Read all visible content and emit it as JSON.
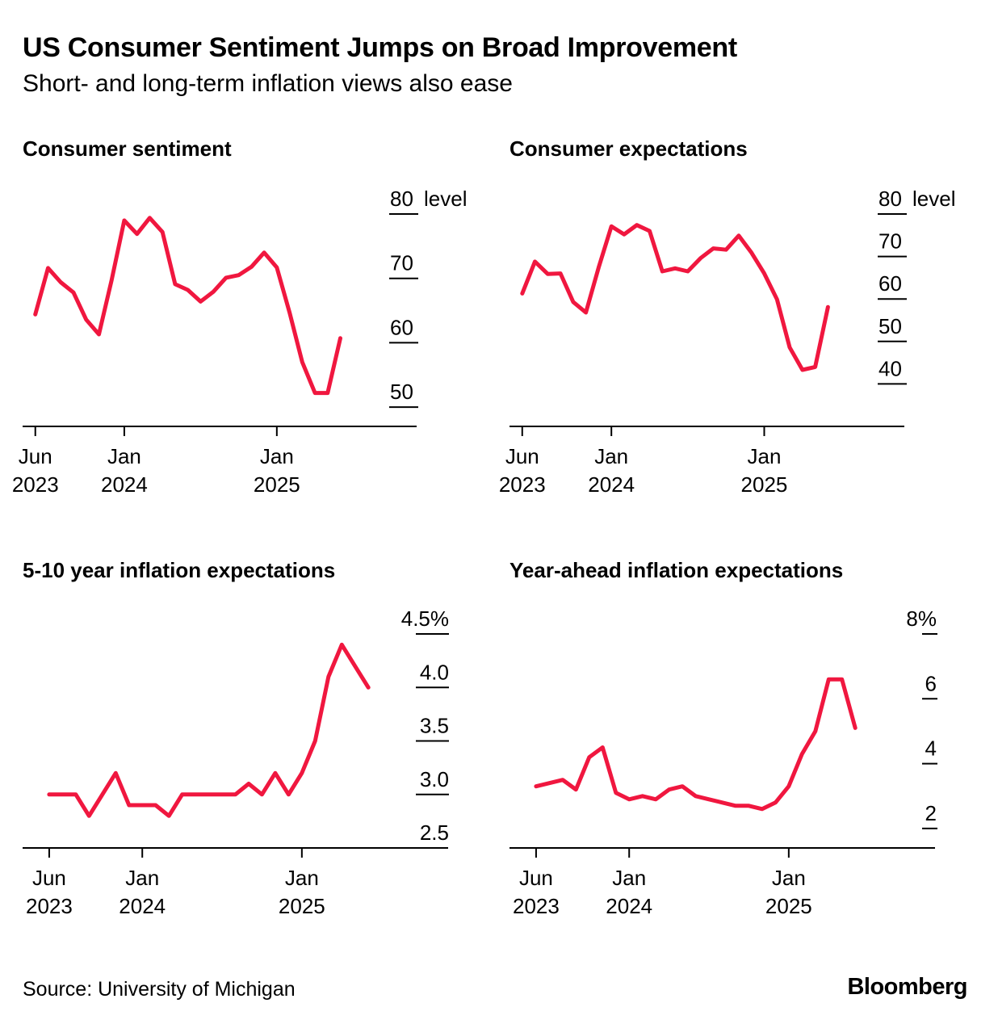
{
  "title": "US Consumer Sentiment Jumps on Broad Improvement",
  "subtitle": "Short- and long-term inflation views also ease",
  "source": "Source: University of Michigan",
  "brand": "Bloomberg",
  "colors": {
    "line": "#f0173f",
    "text": "#000000",
    "axis": "#000000"
  },
  "chart_data": [
    {
      "type": "line",
      "title": "Consumer sentiment",
      "unit_label": "level",
      "x_ticks": [
        {
          "date": "2023-06",
          "label": [
            "Jun",
            "2023"
          ]
        },
        {
          "date": "2024-01",
          "label": [
            "Jan",
            "2024"
          ]
        },
        {
          "date": "2025-01",
          "label": [
            "Jan",
            "2025"
          ]
        }
      ],
      "x_range": [
        "2023-05",
        "2025-12"
      ],
      "y_ticks": [
        50,
        60,
        70,
        80
      ],
      "ylim": [
        47,
        80
      ],
      "series": [
        {
          "x": [
            "2023-06",
            "2023-07",
            "2023-08",
            "2023-09",
            "2023-10",
            "2023-11",
            "2023-12",
            "2024-01",
            "2024-02",
            "2024-03",
            "2024-04",
            "2024-05",
            "2024-06",
            "2024-07",
            "2024-08",
            "2024-09",
            "2024-10",
            "2024-11",
            "2024-12",
            "2025-01",
            "2025-02",
            "2025-03",
            "2025-04",
            "2025-05",
            "2025-06"
          ],
          "y": [
            64.4,
            71.6,
            69.4,
            67.8,
            63.6,
            61.3,
            69.7,
            79.0,
            76.9,
            79.4,
            77.2,
            69.1,
            68.2,
            66.4,
            67.9,
            70.1,
            70.5,
            71.8,
            74.0,
            71.7,
            64.7,
            57.0,
            52.2,
            52.2,
            60.7
          ]
        }
      ]
    },
    {
      "type": "line",
      "title": "Consumer expectations",
      "unit_label": "level",
      "x_ticks": [
        {
          "date": "2023-06",
          "label": [
            "Jun",
            "2023"
          ]
        },
        {
          "date": "2024-01",
          "label": [
            "Jan",
            "2024"
          ]
        },
        {
          "date": "2025-01",
          "label": [
            "Jan",
            "2025"
          ]
        }
      ],
      "x_range": [
        "2023-05",
        "2025-12"
      ],
      "y_ticks": [
        40,
        50,
        60,
        70,
        80
      ],
      "ylim": [
        30,
        80
      ],
      "series": [
        {
          "x": [
            "2023-06",
            "2023-07",
            "2023-08",
            "2023-09",
            "2023-10",
            "2023-11",
            "2023-12",
            "2024-01",
            "2024-02",
            "2024-03",
            "2024-04",
            "2024-05",
            "2024-06",
            "2024-07",
            "2024-08",
            "2024-09",
            "2024-10",
            "2024-11",
            "2024-12",
            "2025-01",
            "2025-02",
            "2025-03",
            "2025-04",
            "2025-05",
            "2025-06"
          ],
          "y": [
            61.3,
            68.8,
            65.9,
            66.0,
            59.3,
            56.8,
            67.4,
            77.1,
            75.2,
            77.4,
            76.0,
            66.5,
            67.2,
            66.5,
            69.6,
            71.9,
            71.6,
            74.9,
            70.9,
            66.0,
            59.9,
            48.6,
            43.3,
            44.0,
            58.1
          ]
        }
      ]
    },
    {
      "type": "line",
      "title": "5-10 year inflation expectations",
      "unit_label": "%",
      "x_ticks": [
        {
          "date": "2023-06",
          "label": [
            "Jun",
            "2023"
          ]
        },
        {
          "date": "2024-01",
          "label": [
            "Jan",
            "2024"
          ]
        },
        {
          "date": "2025-01",
          "label": [
            "Jan",
            "2025"
          ]
        }
      ],
      "x_range": [
        "2023-04",
        "2025-12"
      ],
      "y_ticks": [
        2.5,
        3.0,
        3.5,
        4.0,
        4.5
      ],
      "ylim": [
        2.5,
        4.5
      ],
      "series": [
        {
          "x": [
            "2023-06",
            "2023-07",
            "2023-08",
            "2023-09",
            "2023-10",
            "2023-11",
            "2023-12",
            "2024-01",
            "2024-02",
            "2024-03",
            "2024-04",
            "2024-05",
            "2024-06",
            "2024-07",
            "2024-08",
            "2024-09",
            "2024-10",
            "2024-11",
            "2024-12",
            "2025-01",
            "2025-02",
            "2025-03",
            "2025-04",
            "2025-05",
            "2025-06"
          ],
          "y": [
            3.0,
            3.0,
            3.0,
            2.8,
            3.0,
            3.2,
            2.9,
            2.9,
            2.9,
            2.8,
            3.0,
            3.0,
            3.0,
            3.0,
            3.0,
            3.1,
            3.0,
            3.2,
            3.0,
            3.2,
            3.5,
            4.1,
            4.4,
            4.2,
            4.0
          ]
        }
      ]
    },
    {
      "type": "line",
      "title": "Year-ahead inflation expectations",
      "unit_label": "%",
      "x_ticks": [
        {
          "date": "2023-06",
          "label": [
            "Jun",
            "2023"
          ]
        },
        {
          "date": "2024-01",
          "label": [
            "Jan",
            "2024"
          ]
        },
        {
          "date": "2025-01",
          "label": [
            "Jan",
            "2025"
          ]
        }
      ],
      "x_range": [
        "2023-04",
        "2025-12"
      ],
      "y_ticks": [
        2,
        4,
        6,
        8
      ],
      "ylim": [
        1.4,
        8
      ],
      "series": [
        {
          "x": [
            "2023-06",
            "2023-07",
            "2023-08",
            "2023-09",
            "2023-10",
            "2023-11",
            "2023-12",
            "2024-01",
            "2024-02",
            "2024-03",
            "2024-04",
            "2024-05",
            "2024-06",
            "2024-07",
            "2024-08",
            "2024-09",
            "2024-10",
            "2024-11",
            "2024-12",
            "2025-01",
            "2025-02",
            "2025-03",
            "2025-04",
            "2025-05",
            "2025-06"
          ],
          "y": [
            3.3,
            3.4,
            3.5,
            3.2,
            4.2,
            4.5,
            3.1,
            2.9,
            3.0,
            2.9,
            3.2,
            3.3,
            3.0,
            2.9,
            2.8,
            2.7,
            2.7,
            2.6,
            2.8,
            3.3,
            4.3,
            5.0,
            6.6,
            6.6,
            5.1
          ]
        }
      ]
    }
  ]
}
